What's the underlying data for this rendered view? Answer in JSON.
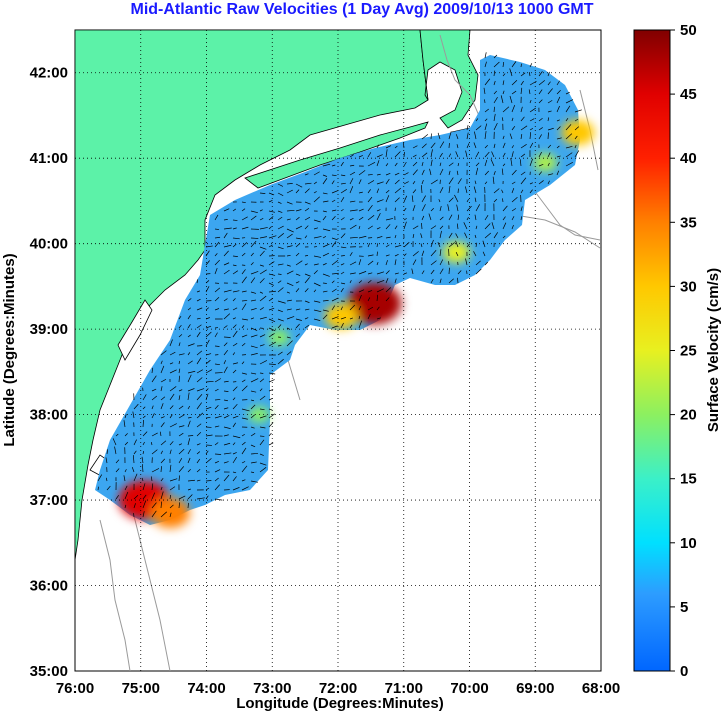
{
  "title": "Mid-Atlantic Raw Velocities (1 Day Avg) 2009/10/13 1000 GMT",
  "map": {
    "xlabel": "Longitude (Degrees:Minutes)",
    "ylabel": "Latitude (Degrees:Minutes)",
    "lon_range": [
      -76,
      -68
    ],
    "lat_range": [
      35,
      42.5
    ],
    "lon_ticks": [
      {
        "value": -76,
        "label": "76:00"
      },
      {
        "value": -75,
        "label": "75:00"
      },
      {
        "value": -74,
        "label": "74:00"
      },
      {
        "value": -73,
        "label": "73:00"
      },
      {
        "value": -72,
        "label": "72:00"
      },
      {
        "value": -71,
        "label": "71:00"
      },
      {
        "value": -70,
        "label": "70:00"
      },
      {
        "value": -69,
        "label": "69:00"
      },
      {
        "value": -68,
        "label": "68:00"
      }
    ],
    "lat_ticks": [
      {
        "value": 35,
        "label": "35:00"
      },
      {
        "value": 36,
        "label": "36:00"
      },
      {
        "value": 37,
        "label": "37:00"
      },
      {
        "value": 38,
        "label": "38:00"
      },
      {
        "value": 39,
        "label": "39:00"
      },
      {
        "value": 40,
        "label": "40:00"
      },
      {
        "value": 41,
        "label": "41:00"
      },
      {
        "value": 42,
        "label": "42:00"
      }
    ],
    "grid": "dotted",
    "land_color": "#5cf2a8",
    "ocean_color": "#ffffff",
    "low_velocity_color": "#3ca6f0"
  },
  "colorbar": {
    "label": "Surface Velocity (cm/s)",
    "range": [
      0,
      50
    ],
    "ticks": [
      {
        "value": 0,
        "label": "0"
      },
      {
        "value": 5,
        "label": "5"
      },
      {
        "value": 10,
        "label": "10"
      },
      {
        "value": 15,
        "label": "15"
      },
      {
        "value": 20,
        "label": "20"
      },
      {
        "value": 25,
        "label": "25"
      },
      {
        "value": 30,
        "label": "30"
      },
      {
        "value": 35,
        "label": "35"
      },
      {
        "value": 40,
        "label": "40"
      },
      {
        "value": 45,
        "label": "45"
      },
      {
        "value": 50,
        "label": "50"
      }
    ],
    "colormap": "jet"
  },
  "features": {
    "high_velocity_zones": [
      {
        "lon": -71.45,
        "lat": 39.3,
        "velocity": 48
      },
      {
        "lon": -71.95,
        "lat": 39.15,
        "velocity": 30
      },
      {
        "lon": -74.95,
        "lat": 37.0,
        "velocity": 45
      },
      {
        "lon": -74.55,
        "lat": 36.85,
        "velocity": 35
      },
      {
        "lon": -68.35,
        "lat": 41.3,
        "velocity": 30
      },
      {
        "lon": -68.85,
        "lat": 40.95,
        "velocity": 22
      },
      {
        "lon": -70.2,
        "lat": 39.9,
        "velocity": 25
      },
      {
        "lon": -72.9,
        "lat": 38.9,
        "velocity": 20
      },
      {
        "lon": -73.2,
        "lat": 38.0,
        "velocity": 20
      }
    ]
  }
}
